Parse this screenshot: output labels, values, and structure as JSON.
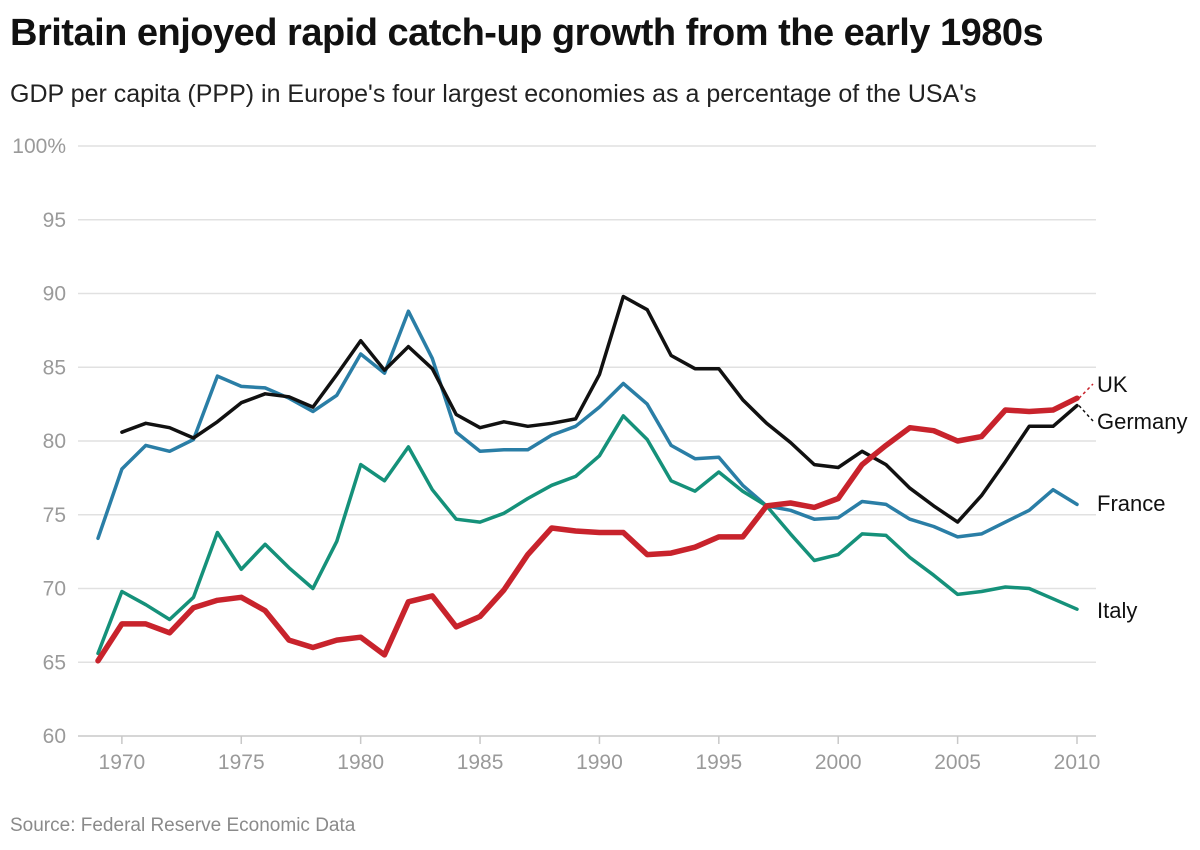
{
  "header": {
    "title": "Britain enjoyed rapid catch-up growth from the early 1980s",
    "subtitle": "GDP per capita (PPP) in Europe's four largest economies as a percentage of the USA's"
  },
  "footer": {
    "source": "Source: Federal Reserve Economic Data"
  },
  "chart_data": {
    "type": "line",
    "title": "Britain enjoyed rapid catch-up growth from the early 1980s",
    "subtitle": "GDP per capita (PPP) in Europe's four largest economies as a percentage of the USA's",
    "xlabel": "",
    "ylabel": "",
    "xlim": [
      1969,
      2010
    ],
    "ylim": [
      60,
      100
    ],
    "yticks": [
      60,
      65,
      70,
      75,
      80,
      85,
      90,
      95,
      100
    ],
    "ytick_labels": [
      "60",
      "65",
      "70",
      "75",
      "80",
      "85",
      "90",
      "95",
      "100%"
    ],
    "xticks": [
      1970,
      1975,
      1980,
      1985,
      1990,
      1995,
      2000,
      2005,
      2010
    ],
    "xtick_labels": [
      "1970",
      "1975",
      "1980",
      "1985",
      "1990",
      "1995",
      "2000",
      "2005",
      "2010"
    ],
    "grid": true,
    "legend": "direct labels at right end of lines",
    "x": [
      1969,
      1970,
      1971,
      1972,
      1973,
      1974,
      1975,
      1976,
      1977,
      1978,
      1979,
      1980,
      1981,
      1982,
      1983,
      1984,
      1985,
      1986,
      1987,
      1988,
      1989,
      1990,
      1991,
      1992,
      1993,
      1994,
      1995,
      1996,
      1997,
      1998,
      1999,
      2000,
      2001,
      2002,
      2003,
      2004,
      2005,
      2006,
      2007,
      2008,
      2009,
      2010
    ],
    "series": [
      {
        "name": "France",
        "label": "France",
        "color": "#2a7ea6",
        "values": [
          73.4,
          78.1,
          79.7,
          79.3,
          80.1,
          84.4,
          83.7,
          83.6,
          82.9,
          82.0,
          83.1,
          85.9,
          84.6,
          88.8,
          85.6,
          80.6,
          79.3,
          79.4,
          79.4,
          80.4,
          81.0,
          82.3,
          83.9,
          82.5,
          79.7,
          78.8,
          78.9,
          77.0,
          75.6,
          75.3,
          74.7,
          74.8,
          75.9,
          75.7,
          74.7,
          74.2,
          73.5,
          73.7,
          74.5,
          75.3,
          76.7,
          75.7
        ]
      },
      {
        "name": "Italy",
        "label": "Italy",
        "color": "#15917a",
        "values": [
          65.6,
          69.8,
          68.9,
          67.9,
          69.4,
          73.8,
          71.3,
          73.0,
          71.4,
          70.0,
          73.2,
          78.4,
          77.3,
          79.6,
          76.7,
          74.7,
          74.5,
          75.1,
          76.1,
          77.0,
          77.6,
          79.0,
          81.7,
          80.1,
          77.3,
          76.6,
          77.9,
          76.6,
          75.6,
          73.7,
          71.9,
          72.3,
          73.7,
          73.6,
          72.1,
          70.9,
          69.6,
          69.8,
          70.1,
          70.0,
          69.3,
          68.6
        ]
      },
      {
        "name": "Germany",
        "label": "Germany",
        "color": "#111111",
        "values": [
          null,
          80.6,
          81.2,
          80.9,
          80.2,
          81.3,
          82.6,
          83.2,
          83.0,
          82.3,
          84.5,
          86.8,
          84.8,
          86.4,
          84.9,
          81.8,
          80.9,
          81.3,
          81.0,
          81.2,
          81.5,
          84.5,
          89.8,
          88.9,
          85.8,
          84.9,
          84.9,
          82.8,
          81.2,
          79.9,
          78.4,
          78.2,
          79.3,
          78.4,
          76.8,
          75.6,
          74.5,
          76.3,
          78.6,
          81.0,
          81.0,
          82.4
        ]
      },
      {
        "name": "UK",
        "label": "UK",
        "color": "#c8232c",
        "values": [
          65.1,
          67.6,
          67.6,
          67.0,
          68.7,
          69.2,
          69.4,
          68.5,
          66.5,
          66.0,
          66.5,
          66.7,
          65.5,
          69.1,
          69.5,
          67.4,
          68.1,
          69.9,
          72.3,
          74.1,
          73.9,
          73.8,
          73.8,
          72.3,
          72.4,
          72.8,
          73.5,
          73.5,
          75.6,
          75.8,
          75.5,
          76.1,
          78.4,
          79.7,
          80.9,
          80.7,
          80.0,
          80.3,
          82.1,
          82.0,
          82.1,
          82.9
        ]
      }
    ]
  }
}
